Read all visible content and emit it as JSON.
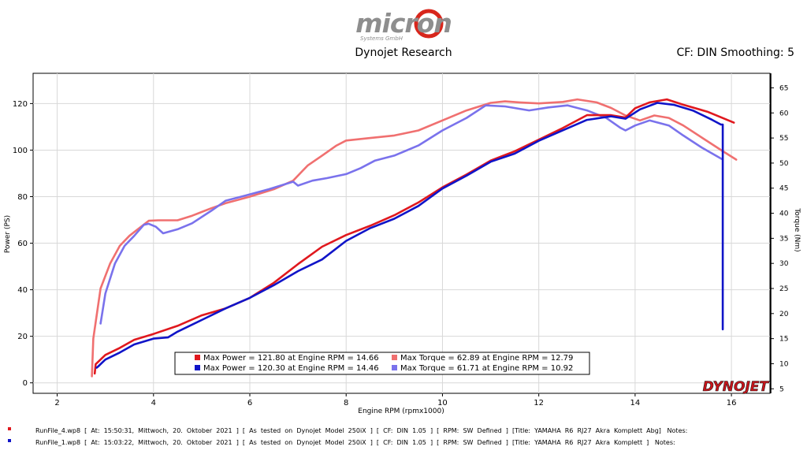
{
  "header": {
    "logo_text": "micron",
    "logo_sub": "Systems GmbH",
    "title": "Dynojet Research",
    "cf_info": "CF: DIN Smoothing: 5"
  },
  "colors": {
    "run4_power": "#e0181e",
    "run1_power": "#1014c8",
    "run4_torque": "#f07070",
    "run1_torque": "#7a72ec",
    "logo_gray": "#8e8e8e",
    "logo_red": "#d8261c"
  },
  "chart_data": {
    "type": "line",
    "title": "Dynojet Research",
    "xlabel": "Engine RPM (rpmx1000)",
    "ylabel": "Power (PS)",
    "y2label": "Torque (Nm)",
    "xlim": [
      1.5,
      16.8
    ],
    "ylim": [
      -4.5,
      133
    ],
    "y2lim": [
      4.1,
      67.9
    ],
    "x_ticks": [
      2,
      4,
      6,
      8,
      10,
      12,
      14,
      16
    ],
    "y_ticks": [
      0,
      20,
      40,
      60,
      80,
      100,
      120
    ],
    "y2_ticks": [
      5,
      10,
      15,
      20,
      25,
      30,
      35,
      40,
      45,
      50,
      55,
      60,
      65
    ],
    "series": [
      {
        "name": "Max Torque = 62.89 at Engine RPM = 12.79",
        "axis": "right",
        "color_key": "run4_torque",
        "x": [
          2.72,
          2.75,
          2.9,
          3.1,
          3.3,
          3.5,
          3.7,
          3.9,
          4.1,
          4.5,
          4.8,
          5.2,
          5.5,
          6.0,
          6.5,
          6.9,
          7.2,
          7.5,
          7.8,
          8.0,
          8.5,
          9.0,
          9.5,
          10.0,
          10.5,
          11.0,
          11.3,
          11.6,
          12.0,
          12.5,
          12.8,
          13.2,
          13.5,
          13.8,
          14.1,
          14.4,
          14.7,
          15.0,
          15.4,
          15.8,
          16.1
        ],
        "y": [
          7.5,
          15,
          25,
          30,
          33.5,
          35.5,
          37,
          38.5,
          38.6,
          38.6,
          39.5,
          41,
          42,
          43.3,
          44.8,
          46.5,
          49.5,
          51.5,
          53.5,
          54.5,
          55,
          55.5,
          56.5,
          58.5,
          60.5,
          62,
          62.3,
          62.1,
          61.9,
          62.2,
          62.7,
          62.1,
          61,
          59.5,
          58.5,
          59.5,
          59,
          57.5,
          55,
          52.5,
          50.7
        ]
      },
      {
        "name": "Max Torque = 61.71 at Engine RPM = 10.92",
        "axis": "right",
        "color_key": "run1_torque",
        "x": [
          2.9,
          3.0,
          3.2,
          3.4,
          3.6,
          3.8,
          3.9,
          4.05,
          4.2,
          4.5,
          4.8,
          5.2,
          5.5,
          5.9,
          6.4,
          6.9,
          7.0,
          7.3,
          7.6,
          8.0,
          8.3,
          8.6,
          9.0,
          9.5,
          10.0,
          10.5,
          10.9,
          11.3,
          11.8,
          12.2,
          12.6,
          13.0,
          13.4,
          13.7,
          13.8,
          14.0,
          14.3,
          14.7,
          15.0,
          15.4,
          15.8
        ],
        "y": [
          18,
          24,
          30,
          33.5,
          35.5,
          37.7,
          37.9,
          37.3,
          36,
          36.8,
          38,
          40.5,
          42.5,
          43.5,
          44.8,
          46.3,
          45.5,
          46.5,
          47,
          47.8,
          49,
          50.5,
          51.5,
          53.5,
          56.5,
          59,
          61.5,
          61.3,
          60.5,
          61.1,
          61.5,
          60.5,
          59,
          57,
          56.5,
          57.5,
          58.5,
          57.5,
          55.5,
          53,
          50.8
        ]
      },
      {
        "name": "Max Power = 121.80 at Engine RPM = 14.66",
        "axis": "left",
        "color_key": "run4_power",
        "x": [
          2.78,
          2.8,
          3.0,
          3.3,
          3.6,
          4.0,
          4.5,
          5.0,
          5.5,
          6.0,
          6.5,
          7.0,
          7.5,
          8.0,
          8.5,
          9.0,
          9.5,
          10.0,
          10.5,
          11.0,
          11.5,
          12.0,
          12.5,
          13.0,
          13.5,
          13.8,
          14.0,
          14.3,
          14.66,
          15.0,
          15.5,
          16.05
        ],
        "y": [
          4,
          8,
          12,
          15,
          18.5,
          21,
          24.5,
          29,
          32,
          36.5,
          43,
          51,
          58.5,
          63.5,
          67.5,
          72,
          77.5,
          84,
          89.5,
          95.5,
          99.5,
          104.5,
          109.5,
          115,
          115,
          114,
          118,
          120.5,
          121.8,
          119.5,
          116.5,
          111.8
        ]
      },
      {
        "name": "Max Power = 120.30 at Engine RPM = 14.46",
        "axis": "left",
        "color_key": "run1_power",
        "x": [
          2.82,
          2.85,
          3.0,
          3.3,
          3.6,
          4.0,
          4.3,
          4.5,
          5.0,
          5.5,
          6.0,
          6.5,
          7.0,
          7.5,
          8.0,
          8.5,
          9.0,
          9.5,
          10.0,
          10.5,
          11.0,
          11.5,
          12.0,
          12.5,
          13.0,
          13.5,
          13.8,
          14.1,
          14.46,
          14.8,
          15.2,
          15.6,
          15.78,
          15.82,
          15.82
        ],
        "y": [
          6.5,
          7,
          10,
          13,
          16.5,
          19,
          19.5,
          22,
          27,
          32,
          36.5,
          42,
          48,
          53,
          61,
          66.5,
          70.5,
          76,
          83.5,
          89,
          95,
          98.5,
          104,
          108.5,
          113,
          114.5,
          113.5,
          117.5,
          120.3,
          119.5,
          117,
          113,
          111,
          111,
          23
        ]
      }
    ],
    "legend": [
      {
        "label": "Max Power = 121.80 at Engine RPM = 14.66",
        "color_key": "run4_power"
      },
      {
        "label": "Max Torque = 62.89 at Engine RPM = 12.79",
        "color_key": "run4_torque"
      },
      {
        "label": "Max Power = 120.30 at Engine RPM = 14.46",
        "color_key": "run1_power"
      },
      {
        "label": "Max Torque = 61.71 at Engine RPM = 10.92",
        "color_key": "run1_torque"
      }
    ],
    "legend_position": "bottom-center",
    "watermark": "DYNOJET"
  },
  "run_files": [
    {
      "text": "RunFile_4.wp8  [  At:  15:50:31,  Mittwoch,  20.  Oktober  2021  ]  [  As  tested  on  Dynojet  Model  250iX  ]  [  CF:  DIN  1.05  ]  [  RPM:  SW  Defined  ]  [Title:  YAMAHA  R6  RJ27  Akra  Komplett  Abg]   Notes:",
      "color_key": "run4_power"
    },
    {
      "text": "RunFile_1.wp8  [  At:  15:03:22,  Mittwoch,  20.  Oktober  2021  ]  [  As  tested  on  Dynojet  Model  250iX  ]  [  CF:  DIN  1.05  ]  [  RPM:  SW  Defined  ]  [Title:  YAMAHA  R6  RJ27  Akra  Komplett  ]   Notes:",
      "color_key": "run1_power"
    }
  ]
}
